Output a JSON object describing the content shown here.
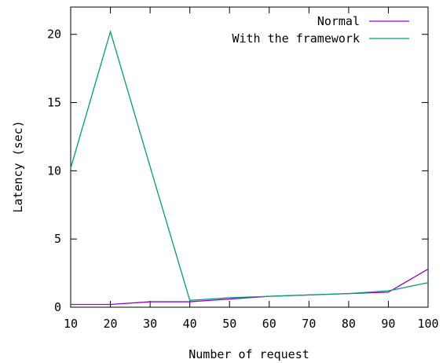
{
  "chart_data": {
    "type": "line",
    "title": "",
    "xlabel": "Number of request",
    "ylabel": "Latency (sec)",
    "xlim": [
      10,
      100
    ],
    "ylim": [
      0,
      22
    ],
    "x_ticks": [
      10,
      20,
      30,
      40,
      50,
      60,
      70,
      80,
      90,
      100
    ],
    "y_ticks": [
      0,
      5,
      10,
      15,
      20
    ],
    "grid": false,
    "legend_position": "top-right",
    "series": [
      {
        "name": "Normal",
        "color": "#9400d3",
        "x": [
          10,
          20,
          30,
          40,
          50,
          60,
          70,
          80,
          90,
          100
        ],
        "y": [
          0.2,
          0.2,
          0.4,
          0.4,
          0.6,
          0.8,
          0.9,
          1.0,
          1.1,
          2.8
        ]
      },
      {
        "name": "With the framework",
        "color": "#009e73",
        "x": [
          10,
          20,
          30,
          40,
          50,
          60,
          70,
          80,
          90,
          100
        ],
        "y": [
          10.2,
          20.2,
          10.3,
          0.5,
          0.7,
          0.8,
          0.9,
          1.0,
          1.2,
          1.8
        ]
      }
    ]
  }
}
